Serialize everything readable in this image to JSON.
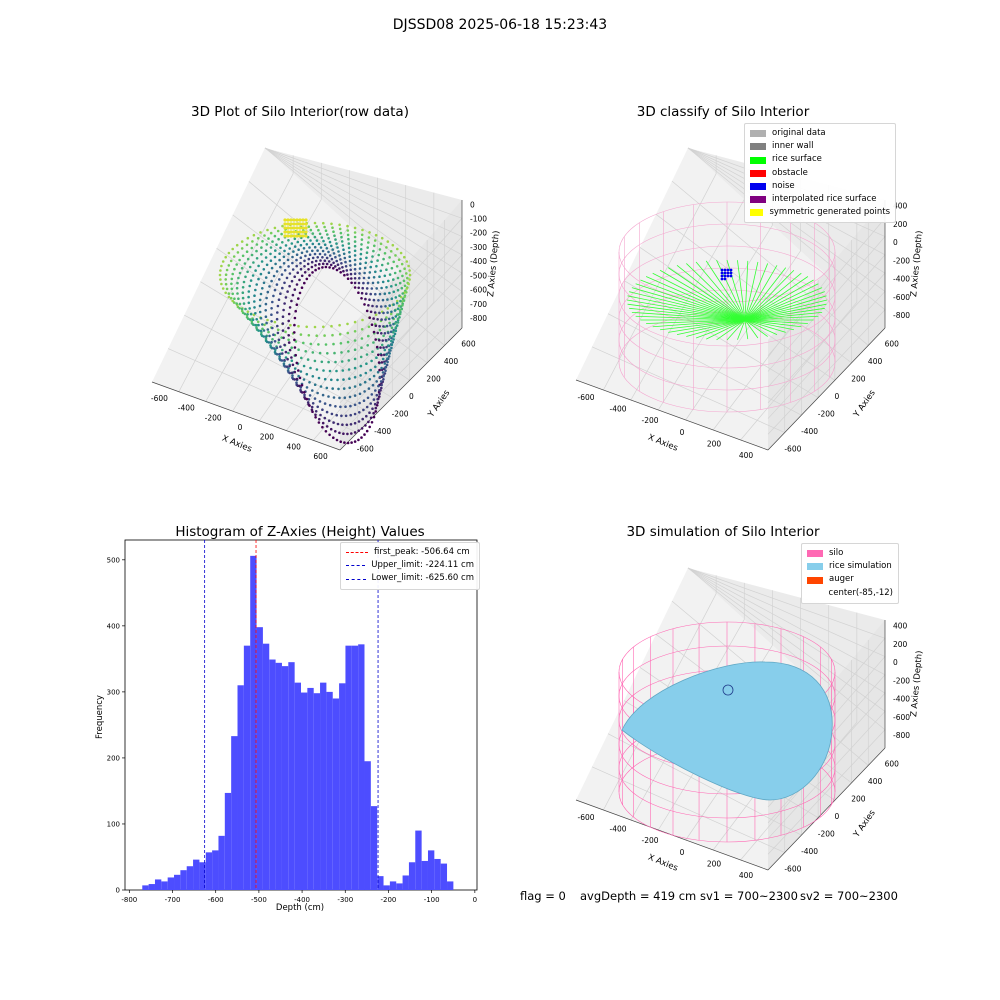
{
  "figure": {
    "suptitle": "DJSSD08 2025-06-18 15:23:43"
  },
  "panels": {
    "raw": {
      "title": "3D Plot of Silo Interior(row data)",
      "xlabel": "X Axies",
      "ylabel": "Y Axies",
      "zlabel": "Z Axies (Depth)",
      "xticks": [
        "-600",
        "-400",
        "-200",
        "0",
        "200",
        "400",
        "600"
      ],
      "yticks": [
        "-600",
        "-400",
        "-200",
        "0",
        "200",
        "400",
        "600"
      ],
      "zticks": [
        "0",
        "-100",
        "-200",
        "-300",
        "-400",
        "-500",
        "-600",
        "-700",
        "-800"
      ],
      "colormap": "viridis"
    },
    "classify": {
      "title": "3D classify of Silo Interior",
      "xlabel": "X Axies",
      "ylabel": "Y Axies",
      "zlabel": "Z Axies (Depth)",
      "xticks": [
        "-600",
        "-400",
        "-200",
        "0",
        "200",
        "400"
      ],
      "yticks": [
        "-600",
        "-400",
        "-200",
        "0",
        "200",
        "400",
        "600"
      ],
      "zticks": [
        "400",
        "200",
        "0",
        "-200",
        "-400",
        "-600",
        "-800"
      ],
      "legend": [
        {
          "label": "original data",
          "color": "#b0b0b0"
        },
        {
          "label": "inner wall",
          "color": "#808080"
        },
        {
          "label": "rice surface",
          "color": "#00ff00"
        },
        {
          "label": "obstacle",
          "color": "#ff0000"
        },
        {
          "label": "noise",
          "color": "#0000ee"
        },
        {
          "label": "interpolated rice surface",
          "color": "#800080"
        },
        {
          "label": "symmetric generated points",
          "color": "#ffff00"
        }
      ]
    },
    "simulation": {
      "title": "3D simulation of Silo Interior",
      "xlabel": "X Axies",
      "ylabel": "Y Axies",
      "zlabel": "Z Axies (Depth)",
      "xticks": [
        "-600",
        "-400",
        "-200",
        "0",
        "200",
        "400"
      ],
      "yticks": [
        "-600",
        "-400",
        "-200",
        "0",
        "200",
        "400",
        "600"
      ],
      "zticks": [
        "400",
        "200",
        "0",
        "-200",
        "-400",
        "-600",
        "-800"
      ],
      "legend": [
        {
          "label": "silo",
          "color": "#ff69b4"
        },
        {
          "label": "rice simulation",
          "color": "#87ceeb"
        },
        {
          "label": "auger",
          "color": "#ff4500"
        },
        {
          "label": "center(-85,-12)",
          "color": ""
        }
      ]
    }
  },
  "chart_data": {
    "type": "bar",
    "title": "Histogram of Z-Axies (Height) Values",
    "xlabel": "Depth (cm)",
    "ylabel": "Frequency",
    "xlim": [
      -810,
      5
    ],
    "ylim": [
      0,
      530
    ],
    "xticks": [
      -800,
      -700,
      -600,
      -500,
      -400,
      -300,
      -200,
      -100,
      0
    ],
    "yticks": [
      0,
      100,
      200,
      300,
      400,
      500
    ],
    "bar_color": "#4d4dff",
    "bin_start": -770,
    "bin_width": 14.7,
    "values": [
      7,
      9,
      16,
      13,
      19,
      23,
      30,
      36,
      46,
      42,
      57,
      60,
      82,
      147,
      233,
      310,
      370,
      506,
      398,
      373,
      349,
      344,
      339,
      345,
      314,
      299,
      306,
      298,
      314,
      300,
      290,
      313,
      370,
      370,
      372,
      195,
      127,
      21,
      7,
      13,
      10,
      22,
      42,
      90,
      44,
      60,
      47,
      40,
      13
    ],
    "vlines": [
      {
        "label": "first_peak: -506.64 cm",
        "x": -506.64,
        "color": "#ff0000"
      },
      {
        "label": "Upper_limit: -224.11 cm",
        "x": -224.11,
        "color": "#0000cc"
      },
      {
        "label": "Lower_limit: -625.60 cm",
        "x": -625.6,
        "color": "#0000cc"
      }
    ],
    "legend_position": "upper right"
  },
  "status": {
    "flag": "flag = 0",
    "avg": "avgDepth = 419 cm",
    "sv1": "sv1 = 700~2300",
    "sv2": "sv2 = 700~2300"
  }
}
